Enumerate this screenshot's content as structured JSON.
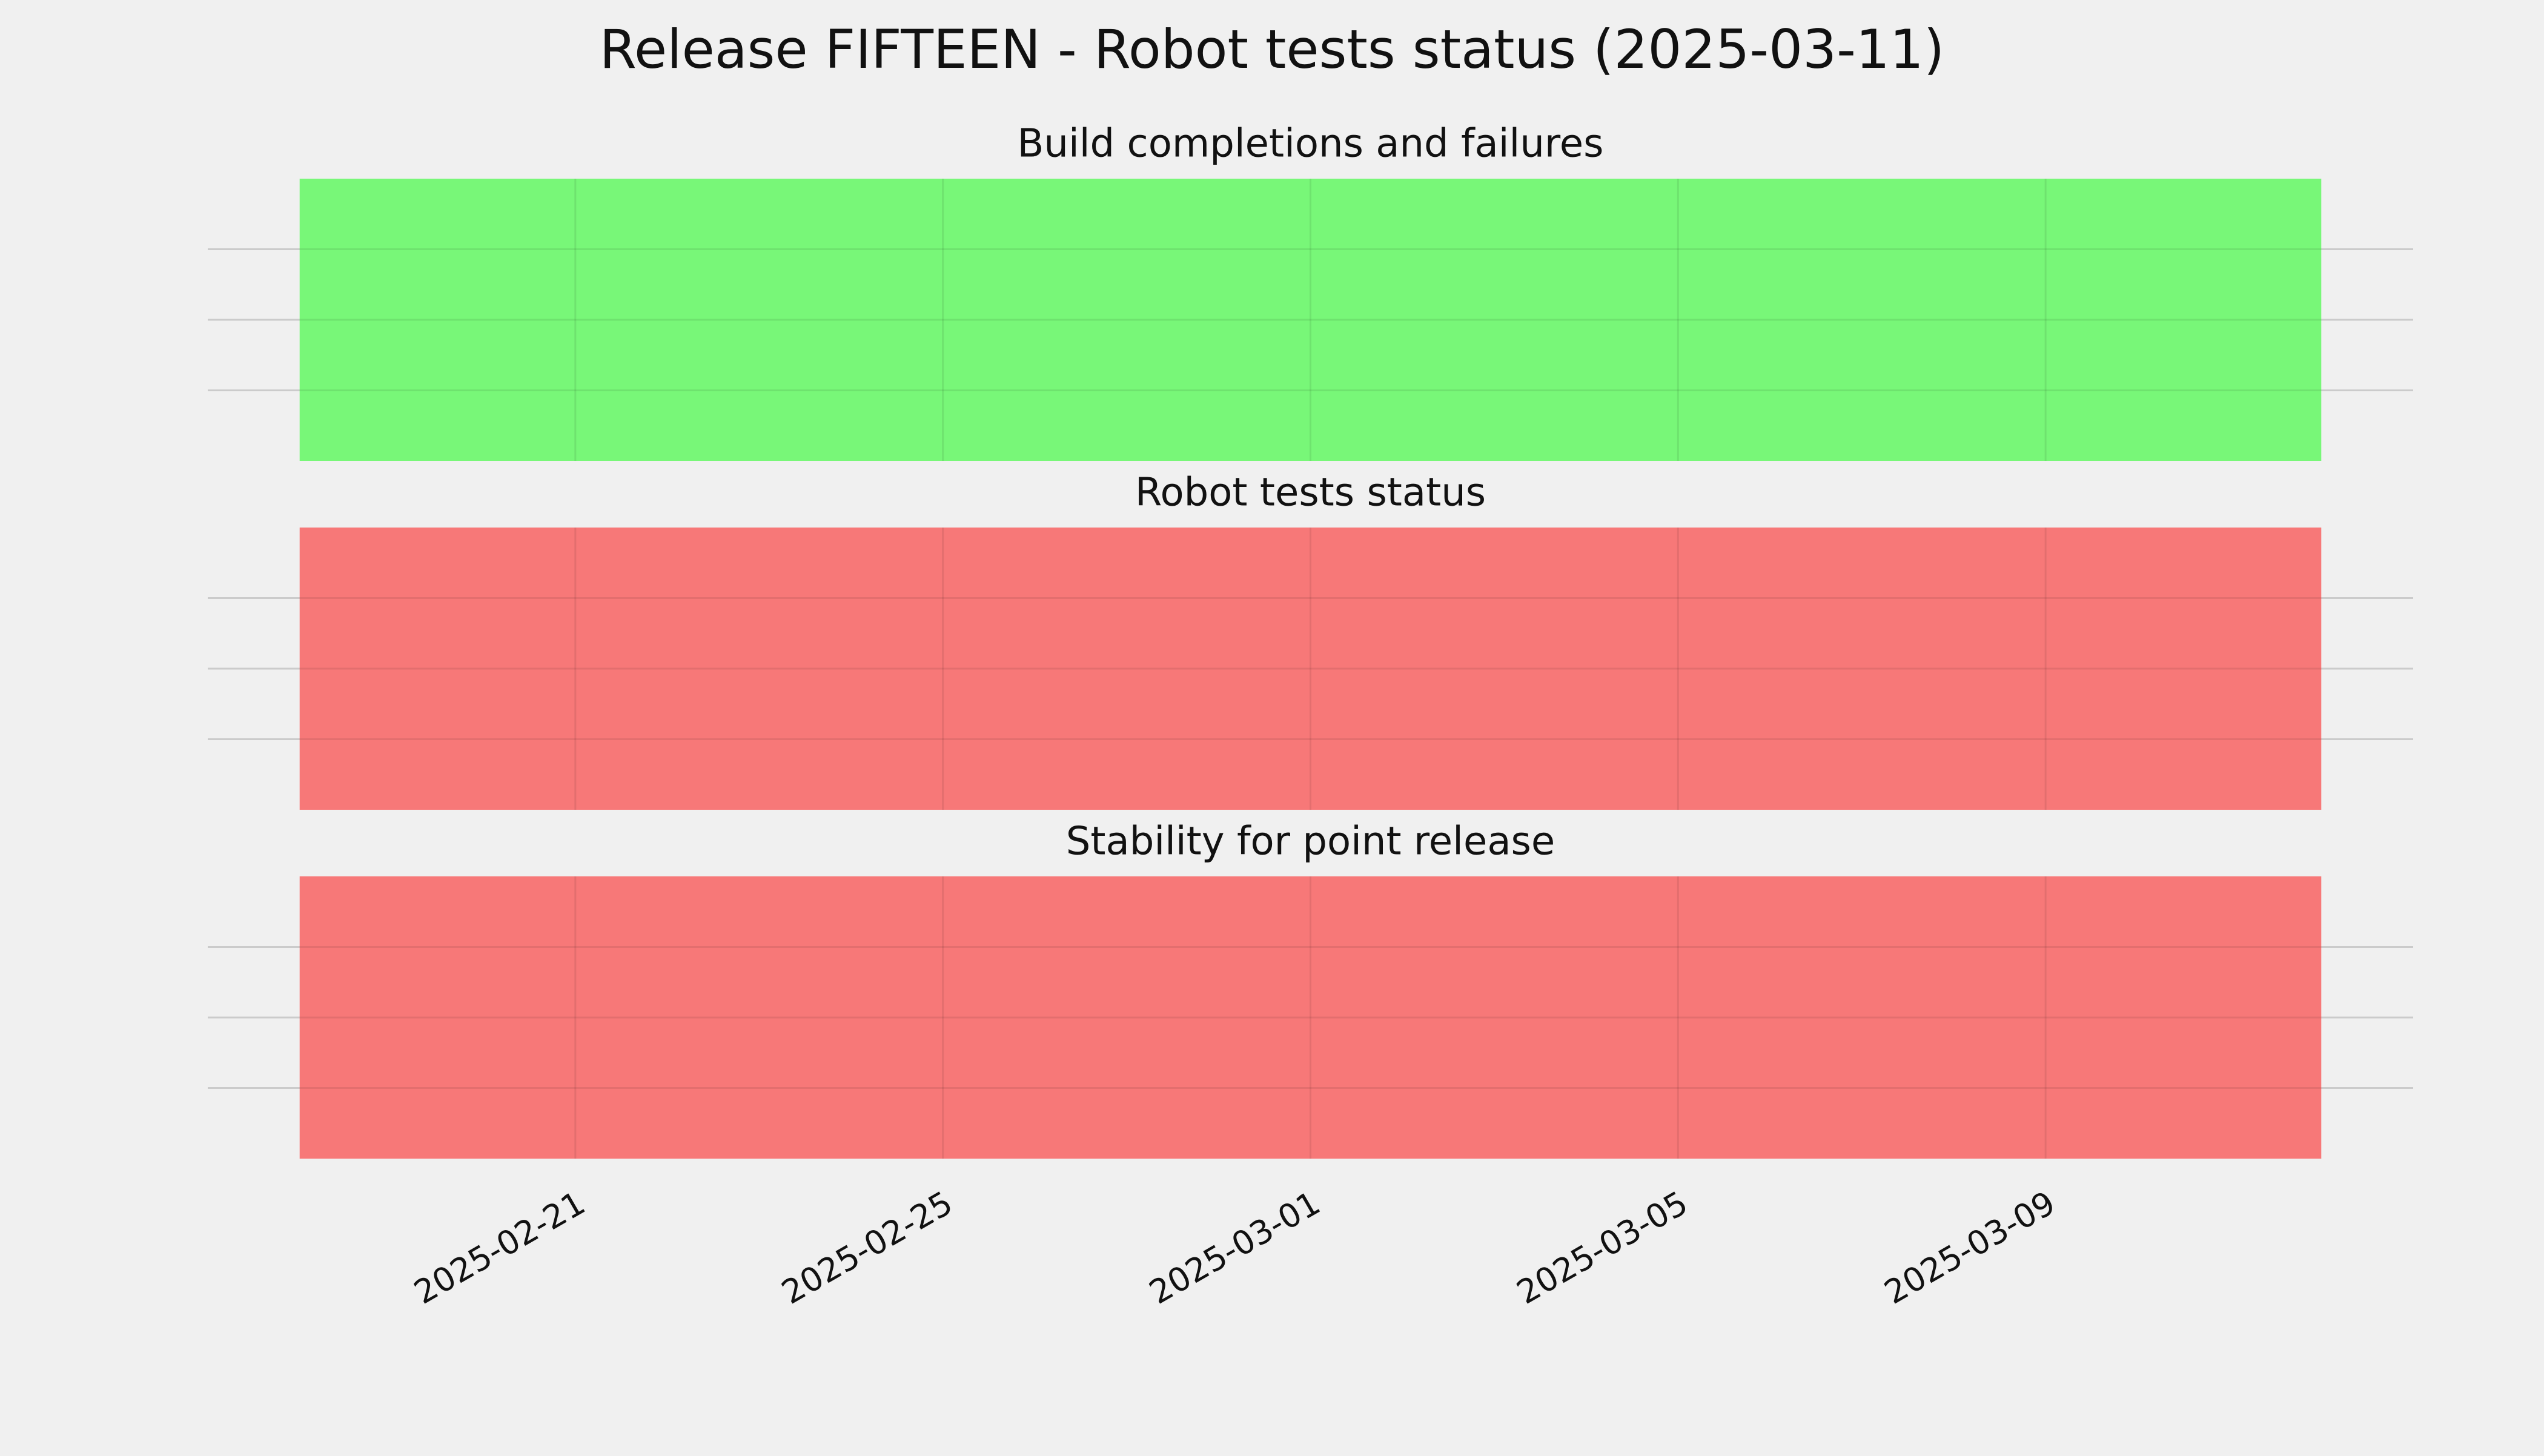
{
  "title": "Release FIFTEEN - Robot tests status (2025-03-11)",
  "chart_data": [
    {
      "type": "span",
      "title": "Build completions and failures",
      "color": "#78f778",
      "start": "2025-02-18",
      "end": "2025-03-12",
      "xlim": [
        "2025-02-17",
        "2025-03-13"
      ],
      "xticks": [
        "2025-02-21",
        "2025-02-25",
        "2025-03-01",
        "2025-03-05",
        "2025-03-09"
      ],
      "ylim": [
        0,
        1
      ],
      "yticks": [
        0.25,
        0.5,
        0.75
      ],
      "grid": true
    },
    {
      "type": "span",
      "title": "Robot tests status",
      "color": "#f77878",
      "start": "2025-02-18",
      "end": "2025-03-12",
      "xlim": [
        "2025-02-17",
        "2025-03-13"
      ],
      "xticks": [
        "2025-02-21",
        "2025-02-25",
        "2025-03-01",
        "2025-03-05",
        "2025-03-09"
      ],
      "ylim": [
        0,
        1
      ],
      "yticks": [
        0.25,
        0.5,
        0.75
      ],
      "grid": true
    },
    {
      "type": "span",
      "title": "Stability for point release",
      "color": "#f77878",
      "start": "2025-02-18",
      "end": "2025-03-12",
      "xlim": [
        "2025-02-17",
        "2025-03-13"
      ],
      "xticks": [
        "2025-02-21",
        "2025-02-25",
        "2025-03-01",
        "2025-03-05",
        "2025-03-09"
      ],
      "ylim": [
        0,
        1
      ],
      "yticks": [
        0.25,
        0.5,
        0.75
      ],
      "grid": true
    }
  ]
}
